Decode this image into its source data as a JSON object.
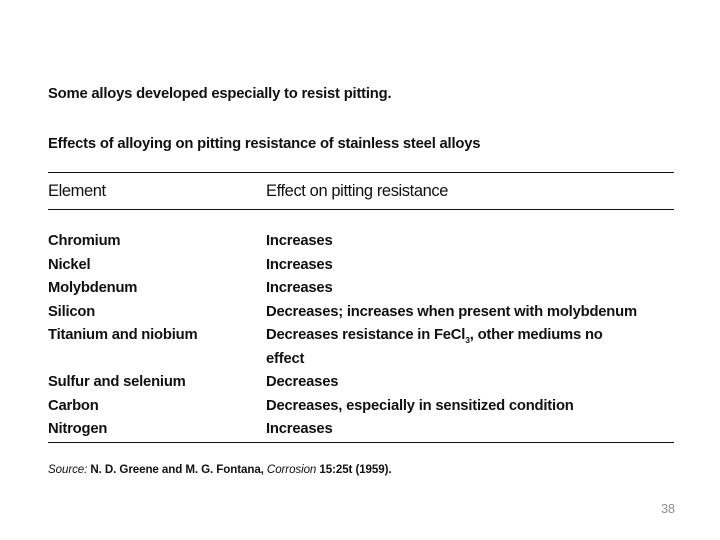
{
  "slide": {
    "intro": "Some alloys developed especially to resist pitting.",
    "subtitle": "Effects of alloying on pitting resistance of stainless steel alloys",
    "table": {
      "headers": [
        "Element",
        "Effect on pitting resistance"
      ],
      "rows": [
        {
          "element": "Chromium",
          "effect_lines": [
            [
              "Increases"
            ]
          ]
        },
        {
          "element": "Nickel",
          "effect_lines": [
            [
              "Increases"
            ]
          ]
        },
        {
          "element": "Molybdenum",
          "effect_lines": [
            [
              "Increases"
            ]
          ]
        },
        {
          "element": "Silicon",
          "effect_lines": [
            [
              "Decreases; increases when present with molybdenum"
            ]
          ]
        },
        {
          "element": "Titanium and niobium",
          "effect_lines": [
            [
              "Decreases resistance in FeCl",
              {
                "sub": "3"
              },
              ", other mediums no"
            ],
            [
              "effect"
            ]
          ]
        },
        {
          "element": "Sulfur and selenium",
          "effect_lines": [
            [
              "Decreases"
            ]
          ]
        },
        {
          "element": "Carbon",
          "effect_lines": [
            [
              "Decreases, especially in sensitized condition"
            ]
          ]
        },
        {
          "element": "Nitrogen",
          "effect_lines": [
            [
              "Increases"
            ]
          ]
        }
      ]
    },
    "source_parts": [
      {
        "text": "Source: ",
        "italic": true
      },
      {
        "text": "N. D. Greene and M. G. Fontana, ",
        "italic": false
      },
      {
        "text": "Corrosion ",
        "italic": true
      },
      {
        "text": "15:25t (1959).",
        "italic": false
      }
    ],
    "page_number": "38",
    "colors": {
      "background": "#ffffff",
      "text": "#111111",
      "rule": "#111111",
      "page_number": "#8f8f8f"
    }
  }
}
